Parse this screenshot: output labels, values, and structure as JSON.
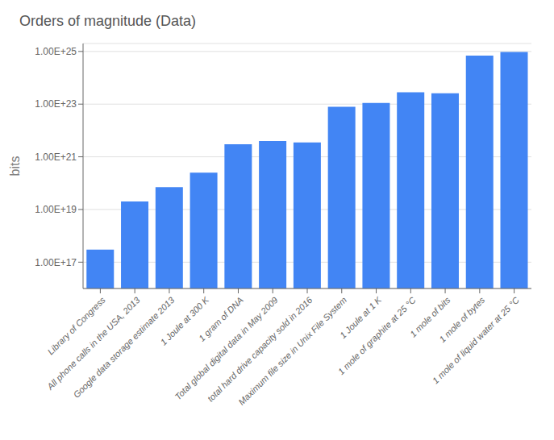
{
  "chart_data": {
    "type": "bar",
    "title": "Orders of magnitude (Data)",
    "y_label": "bits",
    "categories": [
      "Library of Congress",
      "All phone calls in the USA, 2013",
      "Google data storage estimate 2013",
      "1 Joule at 300 K",
      "1 gram of DNA",
      "Total global digital data in May 2009",
      "total hard drive capacity sold in 2016",
      "Maximum file size in Unix File System",
      "1 Joule at 1 K",
      "1 mole of graphite at 25 °C",
      "1 mole of bits",
      "1 mole of bytes",
      "1 mole of liquid water at 25 °C"
    ],
    "values": [
      3e+17,
      2e+19,
      7e+19,
      2.5e+20,
      3e+21,
      4e+21,
      3.5e+21,
      8e+22,
      1.1e+23,
      2.8e+23,
      2.6e+23,
      7e+24,
      9.5e+24
    ],
    "color": "#4285F4",
    "ylim": [
      1e+16,
      2e+25
    ],
    "yticks": [
      {
        "value": 1e+17,
        "label": "1.00E+17"
      },
      {
        "value": 1e+19,
        "label": "1.00E+19"
      },
      {
        "value": 1e+21,
        "label": "1.00E+21"
      },
      {
        "value": 1e+23,
        "label": "1.00E+23"
      },
      {
        "value": 1e+25,
        "label": "1.00E+25"
      }
    ],
    "log": "y",
    "grid": true
  }
}
